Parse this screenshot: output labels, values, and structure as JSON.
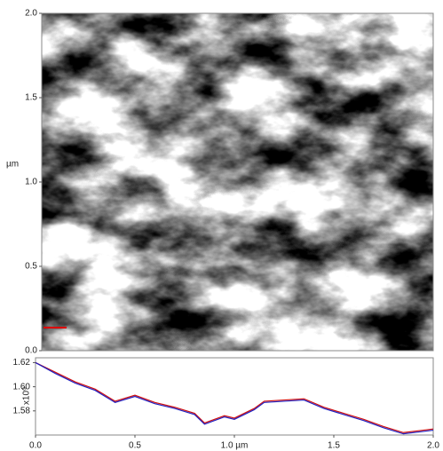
{
  "chart_data": [
    {
      "type": "image",
      "ylabel": "µm",
      "ylim": [
        0,
        2
      ],
      "yticks": [
        {
          "value": 0,
          "label": "0.0"
        },
        0.5,
        {
          "value": 1,
          "label": "1.0"
        },
        1.5,
        {
          "value": 2,
          "label": "2.0"
        }
      ]
    },
    {
      "type": "line",
      "ylabel": "x10⁰",
      "xlim": [
        0,
        2
      ],
      "xticks": [
        {
          "value": 0,
          "label": "0.0"
        },
        0.5,
        {
          "value": 1,
          "label": "1.0 µm"
        },
        1.5,
        {
          "value": 2,
          "label": "2.0"
        }
      ],
      "ylim": [
        1.56,
        1.624
      ],
      "yticks": [
        1.58,
        {
          "value": 1.6,
          "label": "1.60"
        },
        1.62
      ],
      "x": [
        0,
        0.1,
        0.2,
        0.3,
        0.4,
        0.5,
        0.6,
        0.7,
        0.8,
        0.85,
        0.95,
        1.0,
        1.1,
        1.15,
        1.25,
        1.35,
        1.45,
        1.55,
        1.65,
        1.75,
        1.85,
        1.95,
        2.0
      ],
      "series": [
        {
          "color": "#d01010",
          "values": [
            1.62,
            1.612,
            1.604,
            1.598,
            1.588,
            1.593,
            1.587,
            1.583,
            1.578,
            1.57,
            1.576,
            1.574,
            1.582,
            1.588,
            1.589,
            1.59,
            1.583,
            1.578,
            1.573,
            1.567,
            1.562,
            1.564,
            1.565
          ]
        },
        {
          "color": "#2020c0",
          "values": [
            1.62,
            1.611,
            1.603,
            1.597,
            1.587,
            1.592,
            1.586,
            1.582,
            1.577,
            1.569,
            1.575,
            1.573,
            1.581,
            1.587,
            1.588,
            1.589,
            1.582,
            1.577,
            1.572,
            1.566,
            1.561,
            1.563,
            1.564
          ]
        }
      ]
    }
  ]
}
